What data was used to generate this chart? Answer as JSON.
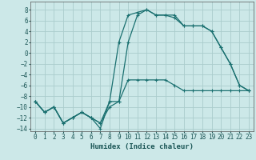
{
  "xlabel": "Humidex (Indice chaleur)",
  "background_color": "#cce8e8",
  "grid_color": "#aacccc",
  "line_color": "#1a7070",
  "xlim": [
    -0.5,
    23.5
  ],
  "ylim": [
    -14.5,
    9.5
  ],
  "xticks": [
    0,
    1,
    2,
    3,
    4,
    5,
    6,
    7,
    8,
    9,
    10,
    11,
    12,
    13,
    14,
    15,
    16,
    17,
    18,
    19,
    20,
    21,
    22,
    23
  ],
  "yticks": [
    -14,
    -12,
    -10,
    -8,
    -6,
    -4,
    -2,
    0,
    2,
    4,
    6,
    8
  ],
  "series1_x": [
    0,
    1,
    2,
    3,
    4,
    5,
    6,
    7,
    8,
    9,
    10,
    11,
    12,
    13,
    14,
    15,
    16,
    17,
    18,
    19,
    20,
    21,
    22,
    23
  ],
  "series1_y": [
    -9,
    -11,
    -10,
    -13,
    -12,
    -11,
    -12,
    -14,
    -9,
    2,
    7,
    7.5,
    8,
    7,
    7,
    6.5,
    5,
    5,
    5,
    4,
    1,
    -2,
    -6,
    -7
  ],
  "series2_x": [
    0,
    1,
    2,
    3,
    4,
    5,
    6,
    7,
    8,
    9,
    10,
    11,
    12,
    13,
    14,
    15,
    16,
    17,
    18,
    19,
    20,
    21,
    22,
    23
  ],
  "series2_y": [
    -9,
    -11,
    -10,
    -13,
    -12,
    -11,
    -12,
    -13,
    -10,
    -9,
    2,
    7,
    8,
    7,
    7,
    7,
    5,
    5,
    5,
    4,
    1,
    -2,
    -6,
    -7
  ],
  "series3_x": [
    0,
    1,
    2,
    3,
    4,
    5,
    6,
    7,
    8,
    9,
    10,
    11,
    12,
    13,
    14,
    15,
    16,
    17,
    18,
    19,
    20,
    21,
    22,
    23
  ],
  "series3_y": [
    -9,
    -11,
    -10,
    -13,
    -12,
    -11,
    -12,
    -13,
    -9,
    -9,
    -5,
    -5,
    -5,
    -5,
    -5,
    -6,
    -7,
    -7,
    -7,
    -7,
    -7,
    -7,
    -7,
    -7
  ]
}
